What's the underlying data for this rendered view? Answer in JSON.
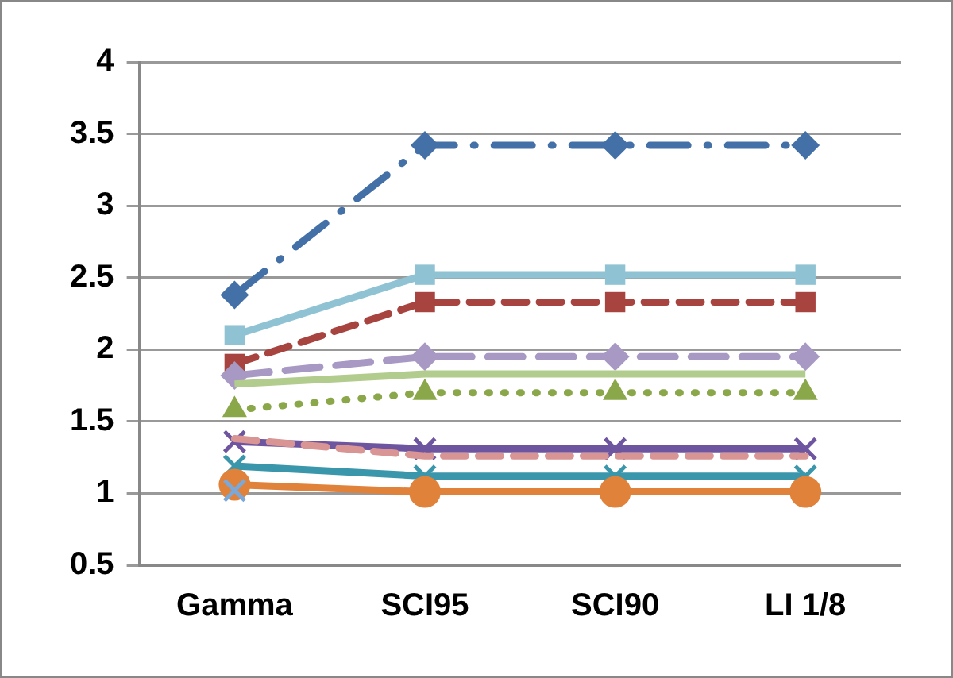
{
  "chart_data": {
    "type": "line",
    "categories": [
      "Gamma",
      "SCI95",
      "SCI90",
      "LI 1/8"
    ],
    "ylim": [
      0.5,
      4
    ],
    "yticks": [
      0.5,
      1,
      1.5,
      2,
      2.5,
      3,
      3.5,
      4
    ],
    "grid": "y",
    "legend": false,
    "series": [
      {
        "color": "#4470a8",
        "values": [
          2.38,
          3.42,
          3.42,
          3.42
        ],
        "marker": "diamond",
        "line_style": "dashdot"
      },
      {
        "color": "#8fc3d4",
        "values": [
          2.1,
          2.52,
          2.52,
          2.52
        ],
        "marker": "square",
        "line_style": "solid"
      },
      {
        "color": "#a84440",
        "values": [
          1.9,
          2.33,
          2.33,
          2.33
        ],
        "marker": "square",
        "line_style": "dashed"
      },
      {
        "color": "#a799c3",
        "values": [
          1.82,
          1.95,
          1.95,
          1.95
        ],
        "marker": "diamond",
        "line_style": "longdash"
      },
      {
        "color": "#b2cc8e",
        "values": [
          1.76,
          1.83,
          1.83,
          1.83
        ],
        "marker": "none",
        "line_style": "solid"
      },
      {
        "color": "#8aa84a",
        "values": [
          1.58,
          1.7,
          1.7,
          1.7
        ],
        "marker": "triangle",
        "line_style": "dotted"
      },
      {
        "color": "#6e55a0",
        "values": [
          1.36,
          1.31,
          1.31,
          1.31
        ],
        "marker": "cross",
        "line_style": "solid"
      },
      {
        "color": "#d99494",
        "values": [
          1.38,
          1.26,
          1.26,
          1.26
        ],
        "marker": "none",
        "line_style": "dashed"
      },
      {
        "color": "#3a96aa",
        "values": [
          1.19,
          1.12,
          1.12,
          1.12
        ],
        "marker": "cross",
        "line_style": "solid"
      },
      {
        "color": "#e0823a",
        "values": [
          1.06,
          1.01,
          1.01,
          1.01
        ],
        "marker": "circle",
        "line_style": "solid"
      },
      {
        "color": "#7aa8d8",
        "values": [
          1.02,
          null,
          null,
          null
        ],
        "marker": "cross",
        "line_style": "solid"
      }
    ]
  }
}
